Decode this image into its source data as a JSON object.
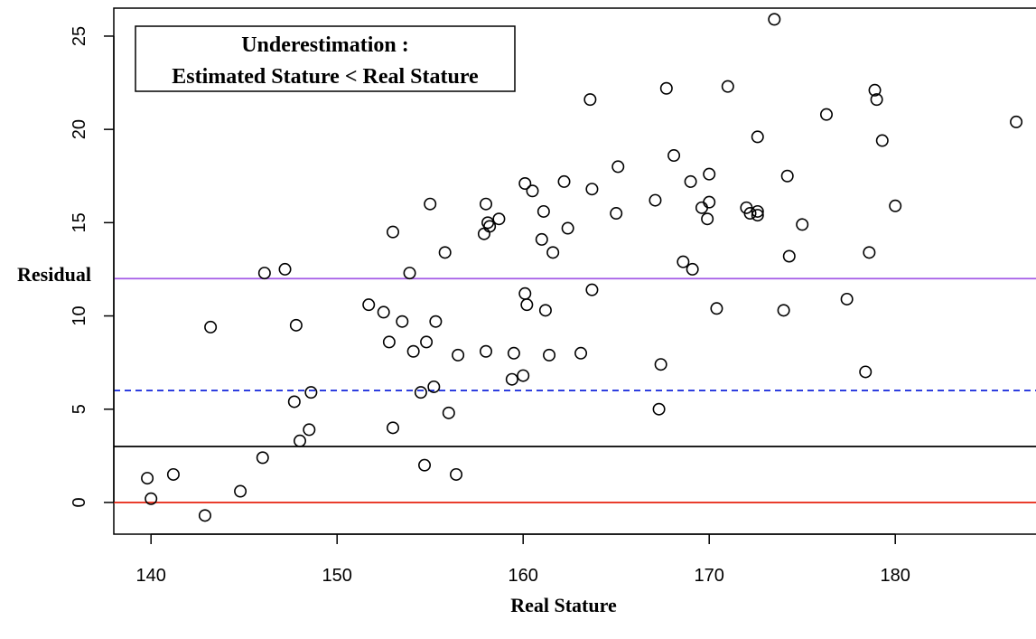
{
  "chart_data": {
    "type": "scatter",
    "title": "",
    "xlabel": "Real Stature",
    "ylabel": "Residual",
    "xlim": [
      138,
      188
    ],
    "ylim": [
      -1.7,
      26.5
    ],
    "xticks": [
      140,
      150,
      160,
      170,
      180
    ],
    "yticks": [
      0,
      5,
      10,
      15,
      20,
      25
    ],
    "grid": false,
    "legend": {
      "position": "top-left",
      "lines": [
        "Underestimation :",
        "Estimated Stature < Real Stature"
      ]
    },
    "reference_lines": [
      {
        "y": 0,
        "color": "#e8311f",
        "style": "solid"
      },
      {
        "y": 3,
        "color": "#000000",
        "style": "solid"
      },
      {
        "y": 6,
        "color": "#2233dd",
        "style": "dashed"
      },
      {
        "y": 12,
        "color": "#a45ae6",
        "style": "solid"
      }
    ],
    "points": [
      [
        139.8,
        1.3
      ],
      [
        140.0,
        0.2
      ],
      [
        141.2,
        1.5
      ],
      [
        142.9,
        -0.7
      ],
      [
        143.2,
        9.4
      ],
      [
        144.8,
        0.6
      ],
      [
        146.0,
        2.4
      ],
      [
        146.1,
        12.3
      ],
      [
        147.2,
        12.5
      ],
      [
        147.7,
        5.4
      ],
      [
        147.8,
        9.5
      ],
      [
        148.0,
        3.3
      ],
      [
        148.5,
        3.9
      ],
      [
        148.6,
        5.9
      ],
      [
        151.7,
        10.6
      ],
      [
        152.5,
        10.2
      ],
      [
        152.8,
        8.6
      ],
      [
        153.0,
        4.0
      ],
      [
        153.0,
        14.5
      ],
      [
        153.5,
        9.7
      ],
      [
        153.9,
        12.3
      ],
      [
        154.1,
        8.1
      ],
      [
        154.5,
        5.9
      ],
      [
        154.7,
        2.0
      ],
      [
        154.8,
        8.6
      ],
      [
        155.0,
        16.0
      ],
      [
        155.2,
        6.2
      ],
      [
        155.3,
        9.7
      ],
      [
        155.8,
        13.4
      ],
      [
        156.0,
        4.8
      ],
      [
        156.4,
        1.5
      ],
      [
        156.5,
        7.9
      ],
      [
        157.9,
        14.4
      ],
      [
        158.0,
        16.0
      ],
      [
        158.0,
        8.1
      ],
      [
        158.1,
        15.0
      ],
      [
        158.2,
        14.8
      ],
      [
        158.7,
        15.2
      ],
      [
        159.4,
        6.6
      ],
      [
        159.5,
        8.0
      ],
      [
        160.0,
        6.8
      ],
      [
        160.1,
        11.2
      ],
      [
        160.1,
        17.1
      ],
      [
        160.2,
        10.6
      ],
      [
        160.5,
        16.7
      ],
      [
        161.0,
        14.1
      ],
      [
        161.1,
        15.6
      ],
      [
        161.2,
        10.3
      ],
      [
        161.4,
        7.9
      ],
      [
        161.6,
        13.4
      ],
      [
        162.2,
        17.2
      ],
      [
        162.4,
        14.7
      ],
      [
        163.1,
        8.0
      ],
      [
        163.6,
        21.6
      ],
      [
        163.7,
        16.8
      ],
      [
        163.7,
        11.4
      ],
      [
        165.0,
        15.5
      ],
      [
        165.1,
        18.0
      ],
      [
        167.1,
        16.2
      ],
      [
        167.3,
        5.0
      ],
      [
        167.4,
        7.4
      ],
      [
        167.7,
        22.2
      ],
      [
        168.1,
        18.6
      ],
      [
        168.6,
        12.9
      ],
      [
        169.0,
        17.2
      ],
      [
        169.1,
        12.5
      ],
      [
        169.6,
        15.8
      ],
      [
        169.9,
        15.2
      ],
      [
        170.0,
        16.1
      ],
      [
        170.0,
        17.6
      ],
      [
        170.4,
        10.4
      ],
      [
        171.0,
        22.3
      ],
      [
        172.0,
        15.8
      ],
      [
        172.2,
        15.5
      ],
      [
        172.6,
        15.6
      ],
      [
        172.6,
        15.4
      ],
      [
        172.6,
        19.6
      ],
      [
        173.5,
        25.9
      ],
      [
        174.0,
        10.3
      ],
      [
        174.2,
        17.5
      ],
      [
        174.3,
        13.2
      ],
      [
        175.0,
        14.9
      ],
      [
        176.3,
        20.8
      ],
      [
        177.4,
        10.9
      ],
      [
        178.4,
        7.0
      ],
      [
        178.6,
        13.4
      ],
      [
        178.9,
        22.1
      ],
      [
        179.0,
        21.6
      ],
      [
        179.3,
        19.4
      ],
      [
        180.0,
        15.9
      ],
      [
        186.5,
        20.4
      ]
    ]
  }
}
